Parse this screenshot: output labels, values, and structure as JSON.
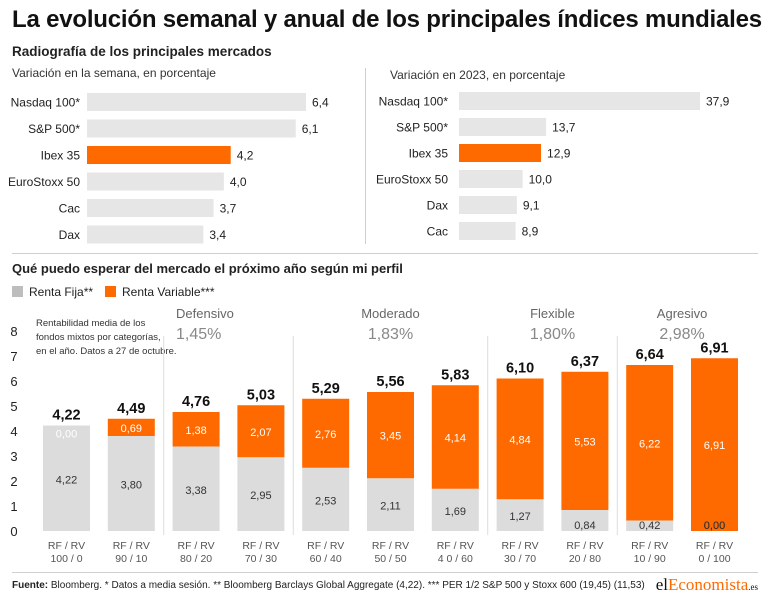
{
  "title": "La evolución semanal y anual de los principales índices mundiales",
  "subtitle": "Radiografía de los principales mercados",
  "footer": {
    "source_label": "Fuente:",
    "source_text": " Bloomberg. * Datos a media sesión. ** Bloomberg Barclays Global Aggregate (4,22). *** PER 1/2 S&P 500 y Stoxx 600 (19,45) (11,53)"
  },
  "logo": {
    "part1": "el",
    "part2": "Economista",
    "part3": ".es"
  },
  "colors": {
    "highlight": "#ff6a00",
    "neutral": "#e6e6e6",
    "neutral_dark": "#dcdcdc",
    "text": "#222222",
    "grey_label": "#666666"
  },
  "chart_data": [
    {
      "type": "bar",
      "orientation": "horizontal",
      "title": "Variación en la semana, en porcentaje",
      "categories": [
        "Nasdaq 100*",
        "S&P 500*",
        "Ibex 35",
        "EuroStoxx 50",
        "Cac",
        "Dax"
      ],
      "values": [
        6.4,
        6.1,
        4.2,
        4.0,
        3.7,
        3.4
      ],
      "value_labels": [
        "6,4",
        "6,1",
        "4,2",
        "4,0",
        "3,7",
        "3,4"
      ],
      "highlight": "Ibex 35",
      "xlim": [
        0,
        6.4
      ]
    },
    {
      "type": "bar",
      "orientation": "horizontal",
      "title": "Variación en 2023, en porcentaje",
      "categories": [
        "Nasdaq 100*",
        "S&P 500*",
        "Ibex 35",
        "EuroStoxx 50",
        "Dax",
        "Cac"
      ],
      "values": [
        37.9,
        13.7,
        12.9,
        10.0,
        9.1,
        8.9
      ],
      "value_labels": [
        "37,9",
        "13,7",
        "12,9",
        "10,0",
        "9,1",
        "8,9"
      ],
      "highlight": "Ibex 35",
      "xlim": [
        0,
        37.9
      ]
    },
    {
      "type": "bar",
      "stacked": true,
      "title": "Qué puedo esperar del mercado el próximo año según mi perfil",
      "legend": [
        "Renta Fija**",
        "Renta Variable***"
      ],
      "note": [
        "Rentabilidad media de los",
        "fondos mixtos por categorías,",
        "en el año. Datos a 27 de octubre."
      ],
      "categories": [
        [
          "RF / RV",
          "100 / 0"
        ],
        [
          "RF / RV",
          "90 / 10"
        ],
        [
          "RF / RV",
          "80 / 20"
        ],
        [
          "RF / RV",
          "70 / 30"
        ],
        [
          "RF / RV",
          "60 / 40"
        ],
        [
          "RF / RV",
          "50 / 50"
        ],
        [
          "RF / RV",
          "4 0 / 60"
        ],
        [
          "RF / RV",
          "30 / 70"
        ],
        [
          "RF / RV",
          "20 / 80"
        ],
        [
          "RF / RV",
          "10 / 90"
        ],
        [
          "RF / RV",
          "0 / 100"
        ]
      ],
      "series": [
        {
          "name": "Renta Fija**",
          "values": [
            4.22,
            3.8,
            3.38,
            2.95,
            2.53,
            2.11,
            1.69,
            1.27,
            0.84,
            0.42,
            0.0
          ],
          "labels": [
            "4,22",
            "3,80",
            "3,38",
            "2,95",
            "2,53",
            "2,11",
            "1,69",
            "1,27",
            "0,84",
            "0,42",
            "0,00"
          ]
        },
        {
          "name": "Renta Variable***",
          "values": [
            0.0,
            0.69,
            1.38,
            2.07,
            2.76,
            3.45,
            4.14,
            4.84,
            5.53,
            6.22,
            6.91
          ],
          "labels": [
            "0,00",
            "0,69",
            "1,38",
            "2,07",
            "2,76",
            "3,45",
            "4,14",
            "4,84",
            "5,53",
            "6,22",
            "6,91"
          ]
        }
      ],
      "totals": [
        4.22,
        4.49,
        4.76,
        5.03,
        5.29,
        5.56,
        5.83,
        6.1,
        6.37,
        6.64,
        6.91
      ],
      "total_labels": [
        "4,22",
        "4,49",
        "4,76",
        "5,03",
        "5,29",
        "5,56",
        "5,83",
        "6,10",
        "6,37",
        "6,64",
        "6,91"
      ],
      "ylim": [
        0,
        8
      ],
      "yticks": [
        "0",
        "1",
        "2",
        "3",
        "4",
        "5",
        "6",
        "7",
        "8"
      ],
      "profiles": [
        {
          "name": "Defensivo",
          "value": "1,45%",
          "first": 2,
          "last": 3
        },
        {
          "name": "Moderado",
          "value": "1,83%",
          "first": 4,
          "last": 6
        },
        {
          "name": "Flexible",
          "value": "1,80%",
          "first": 7,
          "last": 8
        },
        {
          "name": "Agresivo",
          "value": "2,98%",
          "first": 9,
          "last": 10
        }
      ]
    }
  ]
}
